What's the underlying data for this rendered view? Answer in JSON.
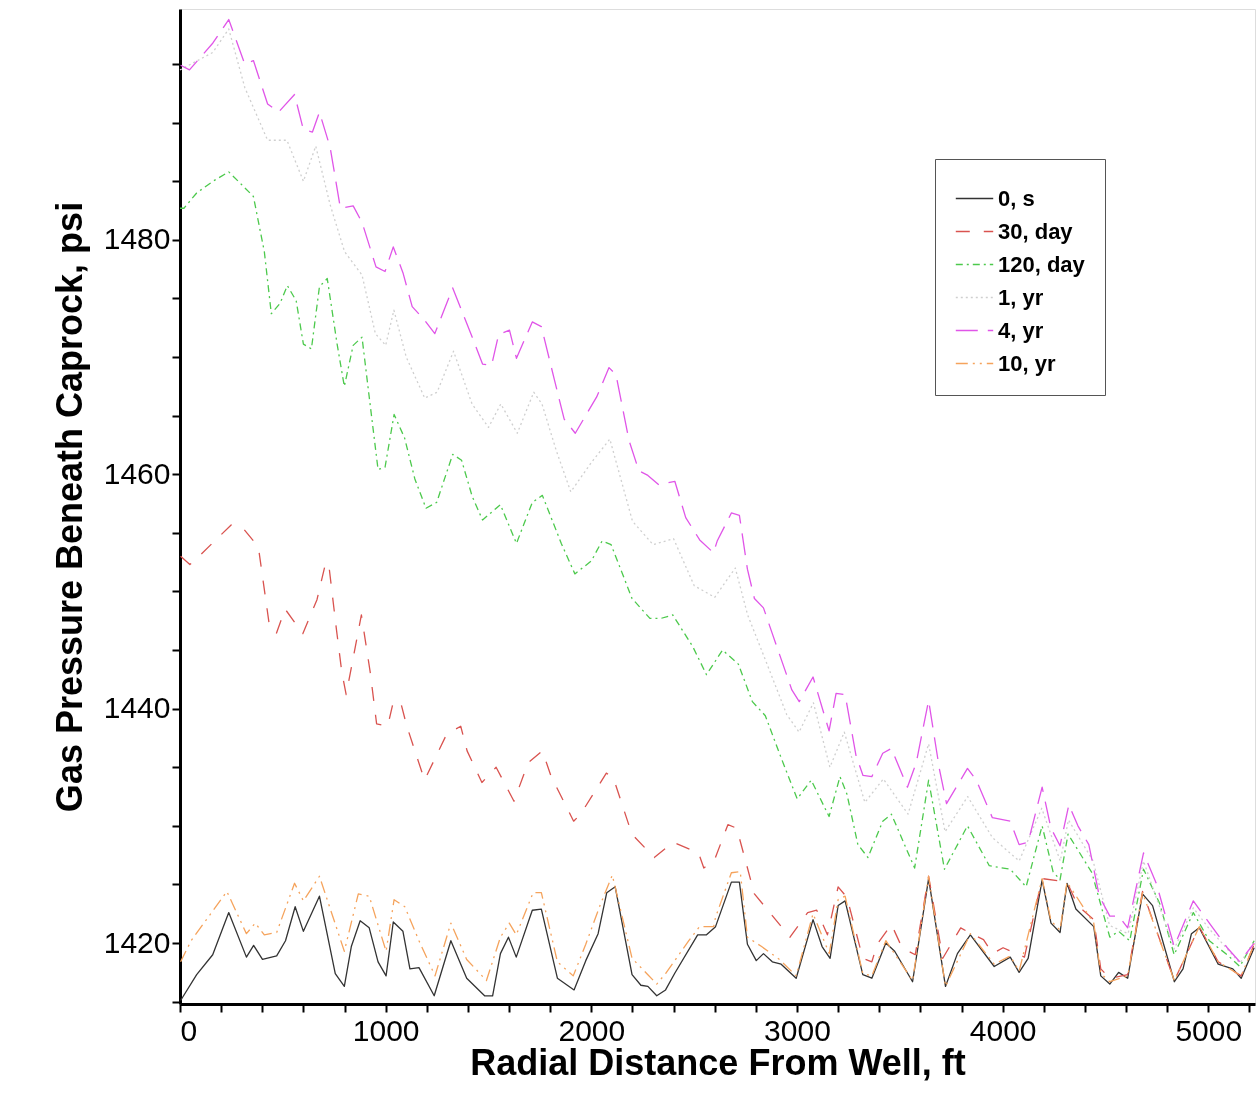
{
  "chart_data": {
    "type": "line",
    "xlabel": "Radial Distance From Well, ft",
    "ylabel": "Gas Pressure Beneath Caprock, psi",
    "xlim": [
      0,
      5227
    ],
    "ylim": [
      1414.8,
      1499.7
    ],
    "xticks": [
      0,
      {
        "value": 200,
        "label": null
      },
      {
        "value": 400,
        "label": null
      },
      {
        "value": 600,
        "label": null
      },
      {
        "value": 800,
        "label": null
      },
      1000,
      {
        "value": 1200,
        "label": null
      },
      {
        "value": 1400,
        "label": null
      },
      {
        "value": 1600,
        "label": null
      },
      {
        "value": 1800,
        "label": null
      },
      2000,
      {
        "value": 2200,
        "label": null
      },
      {
        "value": 2400,
        "label": null
      },
      {
        "value": 2600,
        "label": null
      },
      {
        "value": 2800,
        "label": null
      },
      3000,
      {
        "value": 3200,
        "label": null
      },
      {
        "value": 3400,
        "label": null
      },
      {
        "value": 3600,
        "label": null
      },
      {
        "value": 3800,
        "label": null
      },
      4000,
      {
        "value": 4200,
        "label": null
      },
      {
        "value": 4400,
        "label": null
      },
      {
        "value": 4600,
        "label": null
      },
      {
        "value": 4800,
        "label": null
      },
      5000,
      {
        "value": 5200,
        "label": null
      }
    ],
    "yticks": [
      {
        "value": 1415,
        "label": null
      },
      1420,
      {
        "value": 1425,
        "label": null
      },
      {
        "value": 1430,
        "label": null
      },
      {
        "value": 1435,
        "label": null
      },
      1440,
      {
        "value": 1445,
        "label": null
      },
      {
        "value": 1450,
        "label": null
      },
      {
        "value": 1455,
        "label": null
      },
      1460,
      {
        "value": 1465,
        "label": null
      },
      {
        "value": 1470,
        "label": null
      },
      {
        "value": 1475,
        "label": null
      },
      1480,
      {
        "value": 1485,
        "label": null
      },
      {
        "value": 1490,
        "label": null
      },
      {
        "value": 1495,
        "label": null
      }
    ],
    "grid": false,
    "legend": "top right",
    "marker": "none",
    "series": [
      {
        "name": "0, s",
        "color": "#333333",
        "line_style": "solid",
        "x": [
          3,
          81,
          159,
          237,
          323,
          358,
          401,
          470,
          513,
          560,
          600,
          678,
          755,
          799,
          833,
          876,
          920,
          963,
          1002,
          1037,
          1084,
          1118,
          1162,
          1236,
          1317,
          1394,
          1481,
          1520,
          1558,
          1597,
          1635,
          1713,
          1757,
          1835,
          1916,
          1973,
          2033,
          2075,
          2116,
          2198,
          2241,
          2275,
          2318,
          2361,
          2405,
          2517,
          2560,
          2604,
          2681,
          2720,
          2759,
          2802,
          2837,
          2880,
          2923,
          2996,
          3078,
          3122,
          3161,
          3200,
          3234,
          3320,
          3364,
          3432,
          3475,
          3562,
          3640,
          3722,
          3780,
          3843,
          3959,
          4037,
          4080,
          4124,
          4192,
          4235,
          4279,
          4313,
          4356,
          4443,
          4477,
          4521,
          4564,
          4608,
          4680,
          4729,
          4835,
          4877,
          4918,
          4956,
          5048,
          5119,
          5160,
          5223
        ],
        "values": [
          1415.1,
          1417.3,
          1419.0,
          1422.6,
          1418.8,
          1419.8,
          1418.6,
          1418.9,
          1420.2,
          1423.1,
          1421.0,
          1424.0,
          1417.4,
          1416.3,
          1419.7,
          1421.9,
          1421.3,
          1418.4,
          1417.2,
          1421.8,
          1421.0,
          1417.8,
          1417.9,
          1415.5,
          1420.2,
          1417.0,
          1415.5,
          1415.5,
          1419.1,
          1420.5,
          1418.8,
          1422.8,
          1422.9,
          1417.0,
          1416.0,
          1418.5,
          1420.8,
          1424.3,
          1424.8,
          1417.3,
          1416.4,
          1416.3,
          1415.5,
          1416.0,
          1417.4,
          1420.7,
          1420.7,
          1421.4,
          1425.2,
          1425.2,
          1419.9,
          1418.5,
          1419.1,
          1418.4,
          1418.2,
          1417.0,
          1422.0,
          1419.7,
          1418.7,
          1423.2,
          1423.6,
          1417.3,
          1417.0,
          1420.0,
          1419.3,
          1416.7,
          1425.5,
          1416.3,
          1419.1,
          1420.7,
          1418.0,
          1418.8,
          1417.5,
          1418.7,
          1425.4,
          1421.7,
          1420.9,
          1425.1,
          1422.9,
          1421.4,
          1417.2,
          1416.5,
          1417.5,
          1417.0,
          1424.2,
          1423.2,
          1416.7,
          1417.8,
          1420.8,
          1421.3,
          1418.2,
          1417.8,
          1417.0,
          1419.6
        ]
      },
      {
        "name": "30, day",
        "color": "#d9534f",
        "line_style": "dashed",
        "x": [
          3,
          48,
          92,
          250,
          311,
          381,
          433,
          468,
          511,
          597,
          666,
          709,
          726,
          761,
          787,
          808,
          882,
          925,
          956,
          1010,
          1036,
          1072,
          1103,
          1189,
          1296,
          1365,
          1396,
          1468,
          1537,
          1624,
          1693,
          1762,
          1805,
          1914,
          1948,
          2073,
          2107,
          2197,
          2306,
          2397,
          2521,
          2547,
          2599,
          2664,
          2707,
          2793,
          2966,
          3052,
          3096,
          3148,
          3200,
          3243,
          3320,
          3364,
          3390,
          3459,
          3511,
          3575,
          3640,
          3709,
          3796,
          3847,
          3907,
          3951,
          4002,
          4106,
          4192,
          4313,
          4365,
          4443,
          4477,
          4521,
          4608,
          4680,
          4835,
          4956,
          5048,
          5160,
          5223
        ],
        "values": [
          1453.0,
          1452.3,
          1453.0,
          1455.7,
          1455.3,
          1453.8,
          1447.3,
          1446.4,
          1448.5,
          1446.4,
          1449.3,
          1452.5,
          1451.9,
          1446.7,
          1443.1,
          1441.2,
          1448.0,
          1443.1,
          1438.7,
          1438.5,
          1440.5,
          1440.6,
          1438.5,
          1433.9,
          1437.8,
          1438.5,
          1436.4,
          1433.7,
          1435.0,
          1432.1,
          1435.4,
          1436.4,
          1434.2,
          1430.4,
          1431.0,
          1434.5,
          1434.1,
          1429.3,
          1427.3,
          1428.6,
          1427.7,
          1426.4,
          1427.1,
          1430.1,
          1429.8,
          1424.2,
          1420.5,
          1422.6,
          1422.8,
          1420.7,
          1424.8,
          1423.9,
          1418.7,
          1418.4,
          1419.9,
          1421.6,
          1419.6,
          1419.0,
          1425.7,
          1418.7,
          1421.3,
          1420.8,
          1420.3,
          1419.1,
          1419.6,
          1418.8,
          1425.5,
          1425.2,
          1423.2,
          1422.0,
          1417.8,
          1417.0,
          1417.3,
          1424.4,
          1416.8,
          1421.4,
          1418.4,
          1417.2,
          1419.9
        ]
      },
      {
        "name": "120, day",
        "color": "#4cc94c",
        "line_style": "dashdot",
        "x": [
          0,
          19,
          81,
          160,
          237,
          295,
          357,
          410,
          444,
          487,
          522,
          565,
          600,
          639,
          678,
          716,
          764,
          799,
          842,
          885,
          920,
          963,
          997,
          1041,
          1092,
          1142,
          1196,
          1248,
          1326,
          1369,
          1421,
          1471,
          1558,
          1636,
          1713,
          1762,
          1854,
          1920,
          2000,
          2052,
          2096,
          2198,
          2285,
          2338,
          2396,
          2493,
          2560,
          2638,
          2715,
          2783,
          2846,
          2923,
          3001,
          3069,
          3156,
          3209,
          3243,
          3296,
          3345,
          3417,
          3459,
          3572,
          3640,
          3717,
          3829,
          3935,
          4037,
          4114,
          4192,
          4245,
          4279,
          4318,
          4434,
          4521,
          4564,
          4618,
          4685,
          4763,
          4834,
          4927,
          5005,
          5092,
          5153,
          5223
        ],
        "values": [
          1482.7,
          1482.7,
          1484.0,
          1485.0,
          1485.8,
          1484.8,
          1483.7,
          1479.0,
          1473.7,
          1474.6,
          1476.1,
          1474.8,
          1471.1,
          1470.7,
          1476.0,
          1476.7,
          1471.1,
          1467.5,
          1471.0,
          1471.7,
          1466.6,
          1460.4,
          1460.6,
          1465.1,
          1463.1,
          1459.6,
          1457.1,
          1457.6,
          1461.7,
          1461.2,
          1458.1,
          1456.1,
          1457.4,
          1454.1,
          1457.6,
          1458.2,
          1454.1,
          1451.5,
          1452.6,
          1454.3,
          1454.0,
          1449.4,
          1447.7,
          1447.7,
          1448.0,
          1445.3,
          1442.9,
          1445.0,
          1443.8,
          1440.6,
          1439.4,
          1435.8,
          1432.3,
          1433.9,
          1430.8,
          1434.2,
          1432.7,
          1428.4,
          1427.3,
          1430.4,
          1431.0,
          1426.4,
          1433.9,
          1426.3,
          1430.0,
          1426.6,
          1426.3,
          1424.8,
          1430.0,
          1426.1,
          1425.4,
          1429.3,
          1426.0,
          1420.5,
          1421.0,
          1420.2,
          1426.3,
          1423.4,
          1419.0,
          1422.6,
          1420.2,
          1419.0,
          1418.0,
          1420.2
        ]
      },
      {
        "name": "1, yr",
        "color": "#cfcfcf",
        "line_style": "dotted",
        "x": [
          0,
          160,
          237,
          315,
          426,
          520,
          600,
          660,
          730,
          800,
          885,
          950,
          1000,
          1040,
          1100,
          1190,
          1250,
          1330,
          1420,
          1500,
          1560,
          1640,
          1720,
          1760,
          1830,
          1900,
          2000,
          2090,
          2200,
          2300,
          2400,
          2500,
          2600,
          2700,
          2760,
          2850,
          2950,
          3010,
          3080,
          3160,
          3230,
          3330,
          3420,
          3540,
          3640,
          3720,
          3830,
          3950,
          4080,
          4190,
          4280,
          4320,
          4440,
          4520,
          4610,
          4685,
          4834,
          4927,
          5005,
          5153,
          5223
        ],
        "values": [
          1494.5,
          1496.0,
          1498.0,
          1493.0,
          1488.5,
          1488.5,
          1485.0,
          1488.0,
          1483.0,
          1479.0,
          1477.0,
          1472.0,
          1471.0,
          1474.0,
          1470.0,
          1466.5,
          1467.0,
          1470.5,
          1466.0,
          1464.0,
          1466.0,
          1463.5,
          1467.0,
          1466.0,
          1462.0,
          1458.5,
          1461.0,
          1463.0,
          1456.0,
          1454.0,
          1454.5,
          1450.5,
          1449.5,
          1452.0,
          1448.0,
          1444.0,
          1439.5,
          1438.0,
          1440.5,
          1435.0,
          1438.0,
          1432.0,
          1434.0,
          1431.0,
          1437.0,
          1429.5,
          1432.5,
          1429.0,
          1427.0,
          1431.5,
          1427.0,
          1430.5,
          1427.0,
          1421.5,
          1420.8,
          1427.0,
          1419.5,
          1423.0,
          1421.2,
          1418.3,
          1420.0
        ]
      },
      {
        "name": "4, yr",
        "color": "#e055e8",
        "line_style": "longdash",
        "x": [
          3,
          46,
          160,
          237,
          315,
          357,
          426,
          479,
          557,
          600,
          644,
          678,
          730,
          780,
          842,
          885,
          953,
          997,
          1037,
          1084,
          1129,
          1187,
          1239,
          1326,
          1421,
          1471,
          1515,
          1549,
          1602,
          1636,
          1713,
          1757,
          1820,
          1868,
          1922,
          2026,
          2086,
          2120,
          2183,
          2231,
          2275,
          2328,
          2406,
          2459,
          2527,
          2594,
          2612,
          2681,
          2720,
          2759,
          2793,
          2837,
          2880,
          2975,
          3011,
          3078,
          3156,
          3190,
          3234,
          3287,
          3321,
          3364,
          3417,
          3459,
          3537,
          3580,
          3640,
          3693,
          3727,
          3829,
          3872,
          3950,
          4037,
          4080,
          4124,
          4192,
          4235,
          4279,
          4322,
          4366,
          4419,
          4470,
          4521,
          4564,
          4608,
          4685,
          4747,
          4834,
          4927,
          5005,
          5092,
          5153,
          5223
        ],
        "values": [
          1494.9,
          1494.5,
          1496.8,
          1498.8,
          1495.0,
          1495.3,
          1491.6,
          1490.9,
          1492.4,
          1489.4,
          1489.2,
          1490.9,
          1487.9,
          1482.7,
          1482.9,
          1481.5,
          1477.7,
          1477.3,
          1479.4,
          1477.2,
          1474.3,
          1473.2,
          1472.0,
          1475.9,
          1471.7,
          1469.4,
          1469.3,
          1471.9,
          1472.3,
          1469.9,
          1473.0,
          1472.6,
          1468.1,
          1464.7,
          1463.5,
          1466.6,
          1469.1,
          1468.5,
          1462.9,
          1460.3,
          1459.9,
          1459.1,
          1459.4,
          1456.3,
          1454.4,
          1453.3,
          1454.3,
          1456.7,
          1456.5,
          1451.9,
          1449.4,
          1448.6,
          1446.4,
          1441.6,
          1440.6,
          1442.7,
          1438.1,
          1441.3,
          1441.2,
          1436.0,
          1434.3,
          1434.2,
          1436.2,
          1436.6,
          1433.3,
          1435.4,
          1440.7,
          1434.8,
          1431.9,
          1434.9,
          1433.9,
          1430.7,
          1430.4,
          1428.4,
          1428.6,
          1433.3,
          1429.8,
          1428.3,
          1431.8,
          1430.0,
          1428.4,
          1424.0,
          1422.3,
          1422.3,
          1421.3,
          1427.7,
          1425.1,
          1419.7,
          1423.6,
          1421.7,
          1419.6,
          1418.4,
          1420.0
        ]
      },
      {
        "name": "10, yr",
        "color": "#f5a35c",
        "line_style": "dashdotdot",
        "x": [
          3,
          54,
          228,
          323,
          366,
          410,
          470,
          557,
          600,
          678,
          799,
          867,
          920,
          1002,
          1041,
          1093,
          1162,
          1240,
          1317,
          1394,
          1490,
          1558,
          1601,
          1635,
          1717,
          1757,
          1835,
          1912,
          1973,
          2042,
          2102,
          2198,
          2275,
          2318,
          2361,
          2474,
          2526,
          2595,
          2604,
          2681,
          2724,
          2759,
          2828,
          2915,
          2996,
          3078,
          3157,
          3200,
          3234,
          3320,
          3364,
          3432,
          3562,
          3640,
          3722,
          3843,
          3959,
          4037,
          4080,
          4192,
          4235,
          4279,
          4313,
          4443,
          4477,
          4521,
          4608,
          4680,
          4835,
          4956,
          5048,
          5160,
          5223
        ],
        "values": [
          1418.4,
          1420.2,
          1424.4,
          1420.8,
          1421.7,
          1420.7,
          1420.9,
          1425.1,
          1423.6,
          1425.7,
          1419.3,
          1424.2,
          1424.0,
          1419.3,
          1423.7,
          1423.1,
          1420.2,
          1417.2,
          1421.7,
          1418.6,
          1416.8,
          1420.5,
          1421.7,
          1420.7,
          1424.3,
          1424.3,
          1418.4,
          1417.2,
          1419.9,
          1423.2,
          1425.8,
          1418.7,
          1417.3,
          1416.5,
          1417.4,
          1420.2,
          1421.4,
          1421.4,
          1422.2,
          1426.0,
          1426.1,
          1420.5,
          1419.7,
          1418.6,
          1417.2,
          1422.5,
          1419.1,
          1423.7,
          1424.0,
          1417.4,
          1417.2,
          1420.2,
          1416.8,
          1425.7,
          1416.3,
          1420.8,
          1418.2,
          1418.9,
          1417.6,
          1425.5,
          1421.9,
          1421.1,
          1425.2,
          1421.7,
          1417.4,
          1416.7,
          1417.2,
          1424.3,
          1416.8,
          1421.4,
          1418.4,
          1417.2,
          1419.9
        ]
      }
    ]
  }
}
